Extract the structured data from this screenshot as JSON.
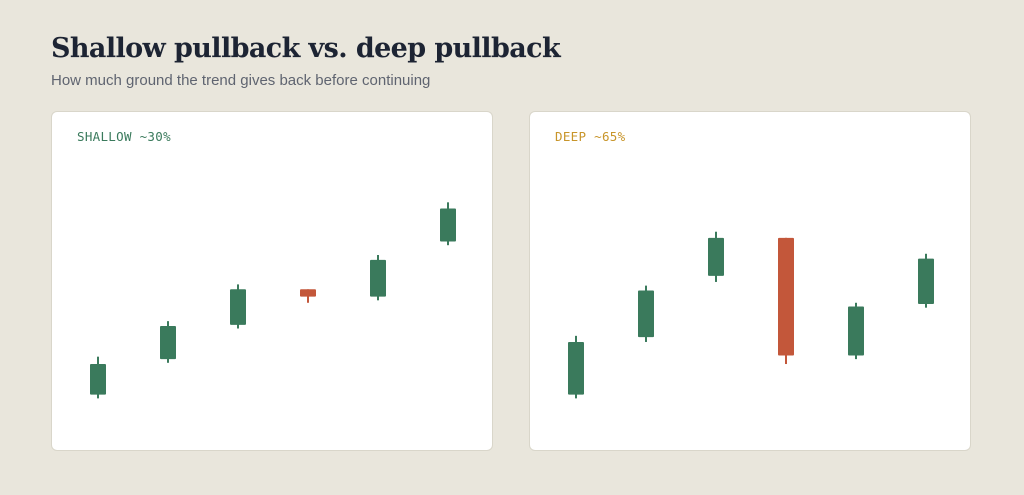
{
  "title": "Shallow pullback vs. deep pullback",
  "subtitle": "How much ground the trend gives back before continuing",
  "colors": {
    "background": "#e9e6dc",
    "bull": "#3a7a5c",
    "bear": "#c3573a",
    "shallow_label": "#3a7a5c",
    "deep_label": "#c8952a"
  },
  "chart_data": [
    {
      "type": "candlestick",
      "label": "SHALLOW ~30%",
      "label_color": "#3a7a5c",
      "ylim": [
        0,
        100
      ],
      "candles": [
        {
          "open": 15.5,
          "high": 18.5,
          "low": 1.5,
          "close": 3.0
        },
        {
          "open": 31.0,
          "high": 33.0,
          "low": 16.0,
          "close": 17.5
        },
        {
          "open": 46.0,
          "high": 48.0,
          "low": 30.0,
          "close": 31.5
        },
        {
          "open": 46.0,
          "high": 46.0,
          "low": 40.5,
          "close": 43.0
        },
        {
          "open": 58.0,
          "high": 60.0,
          "low": 41.5,
          "close": 43.0
        },
        {
          "open": 79.0,
          "high": 81.5,
          "low": 64.0,
          "close": 65.5
        }
      ]
    },
    {
      "type": "candlestick",
      "label": "DEEP ~65%",
      "label_color": "#c8952a",
      "ylim": [
        0,
        100
      ],
      "candles": [
        {
          "open": 24.5,
          "high": 27.0,
          "low": 1.5,
          "close": 3.0
        },
        {
          "open": 45.5,
          "high": 47.5,
          "low": 24.5,
          "close": 26.5
        },
        {
          "open": 67.0,
          "high": 69.5,
          "low": 49.0,
          "close": 51.5
        },
        {
          "open": 67.0,
          "high": 67.0,
          "low": 15.5,
          "close": 19.0
        },
        {
          "open": 39.0,
          "high": 40.5,
          "low": 17.5,
          "close": 19.0
        },
        {
          "open": 58.5,
          "high": 60.5,
          "low": 38.5,
          "close": 40.0
        }
      ]
    }
  ]
}
